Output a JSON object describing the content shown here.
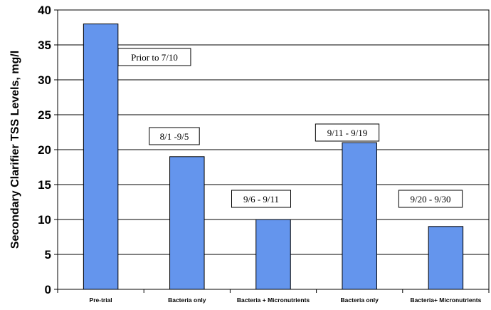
{
  "chart_data": {
    "type": "bar",
    "title": "",
    "xlabel": "",
    "ylabel": "Secondary Clarifier TSS Levels, mg/l",
    "categories": [
      "Pre-trial",
      "Bacteria only",
      "Bacteria + Micronutrients",
      "Bacteria only",
      "Bacteria+ Micronutrients"
    ],
    "values": [
      38,
      19,
      10,
      21,
      9
    ],
    "ylim": [
      0,
      40
    ],
    "yticks": [
      0,
      5,
      10,
      15,
      20,
      25,
      30,
      35,
      40
    ],
    "grid": true,
    "bar_color": "#6495ED",
    "annotations": [
      "Prior to 7/10",
      "8/1 -9/5",
      "9/6 - 9/11",
      "9/11 - 9/19",
      "9/20 - 9/30"
    ]
  }
}
